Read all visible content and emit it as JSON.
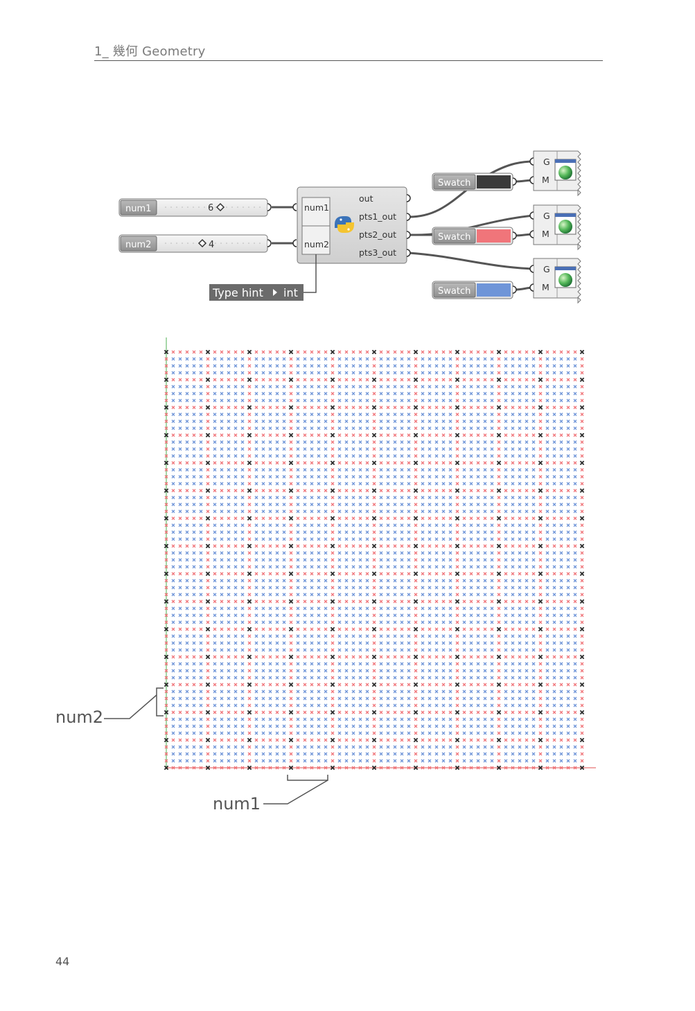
{
  "header": {
    "title": "1_ 幾何 Geometry"
  },
  "page_number": "44",
  "definition": {
    "sliders": [
      {
        "name": "num1",
        "value": "6",
        "level": 0.5
      },
      {
        "name": "num2",
        "value": "4",
        "level": 0.4
      }
    ],
    "python_component": {
      "inputs": [
        "num1",
        "num2"
      ],
      "outputs": [
        "out",
        "pts1_out",
        "pts2_out",
        "pts3_out"
      ]
    },
    "type_hint": {
      "label": "Type hint",
      "value": "int"
    },
    "swatches": [
      {
        "label": "Swatch",
        "color": "#3a3a3a"
      },
      {
        "label": "Swatch",
        "color": "#f0757a"
      },
      {
        "label": "Swatch",
        "color": "#6f95d8"
      }
    ],
    "preview_components": [
      {
        "g_label": "G",
        "m_label": "M"
      },
      {
        "g_label": "G",
        "m_label": "M"
      },
      {
        "g_label": "G",
        "m_label": "M"
      }
    ]
  },
  "grid": {
    "colors": {
      "black": "#2b2b2b",
      "red": "#f0757a",
      "blue": "#6f95d8"
    },
    "num1_step": 6,
    "num2_step": 4,
    "axis_color": "#e05050"
  },
  "callouts": {
    "num1": "num1",
    "num2": "num2"
  }
}
